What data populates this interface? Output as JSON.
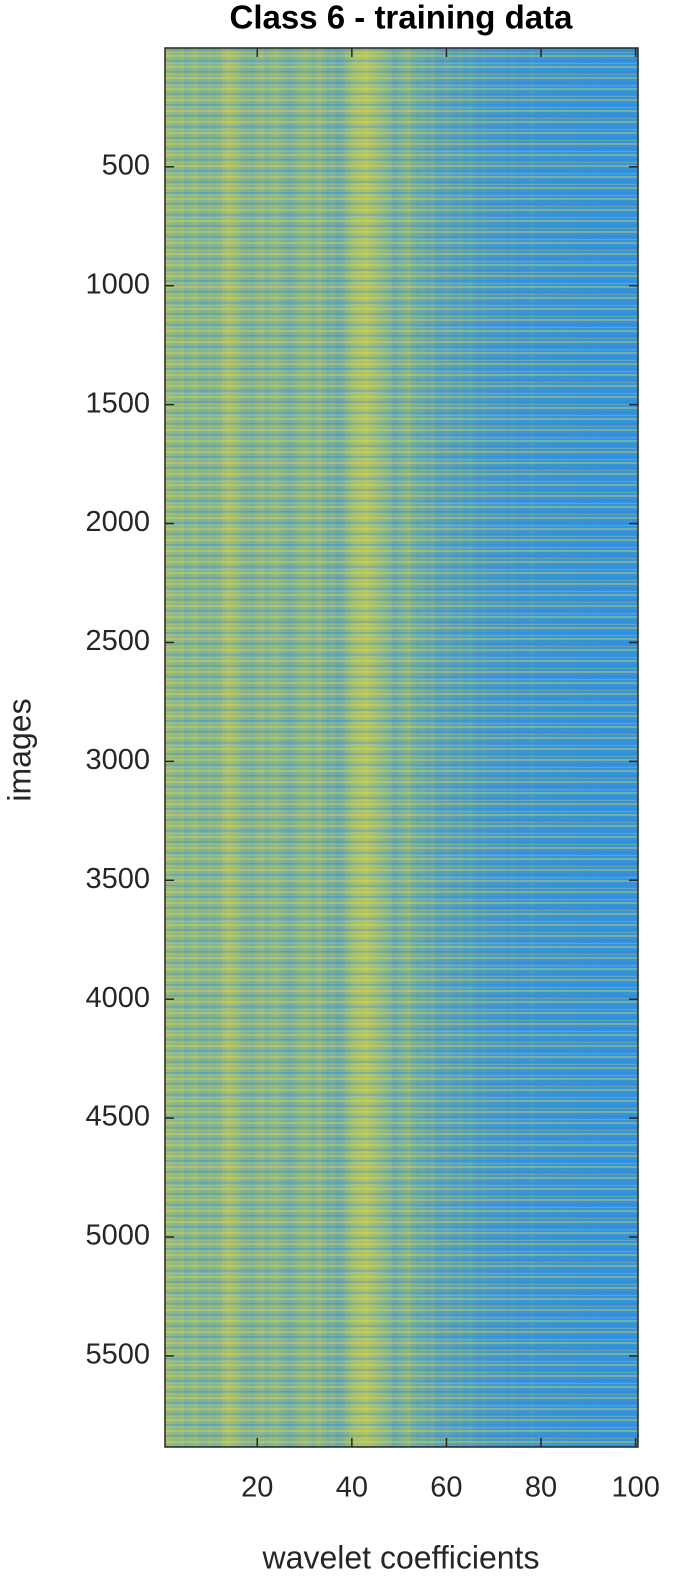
{
  "chart_data": {
    "type": "heatmap",
    "title": "Class 6 - training data",
    "x_label": "wavelet coefficients",
    "y_label": "images",
    "x": [
      1,
      2,
      3,
      4,
      5,
      6,
      7,
      8,
      9,
      10,
      11,
      12,
      13,
      14,
      15,
      16,
      17,
      18,
      19,
      20,
      21,
      22,
      23,
      24,
      25,
      26,
      27,
      28,
      29,
      30,
      31,
      32,
      33,
      34,
      35,
      36,
      37,
      38,
      39,
      40,
      41,
      42,
      43,
      44,
      45,
      46,
      47,
      48,
      49,
      50,
      51,
      52,
      53,
      54,
      55,
      56,
      57,
      58,
      59,
      60,
      61,
      62,
      63,
      64,
      65,
      66,
      67,
      68,
      69,
      70,
      71,
      72,
      73,
      74,
      75,
      76,
      77,
      78,
      79,
      80,
      81,
      82,
      83,
      84,
      85,
      86,
      87,
      88,
      89,
      90,
      91,
      92,
      93,
      94,
      95,
      96,
      97,
      98,
      99,
      100
    ],
    "values": [
      0.55,
      0.5,
      0.45,
      0.5,
      0.4,
      0.45,
      0.5,
      0.42,
      0.4,
      0.45,
      0.4,
      0.45,
      0.55,
      0.6,
      0.55,
      0.5,
      0.42,
      0.4,
      0.38,
      0.45,
      0.48,
      0.4,
      0.45,
      0.5,
      0.42,
      0.38,
      0.35,
      0.4,
      0.45,
      0.5,
      0.45,
      0.4,
      0.5,
      0.42,
      0.35,
      0.38,
      0.3,
      0.35,
      0.45,
      0.55,
      0.6,
      0.62,
      0.65,
      0.6,
      0.55,
      0.5,
      0.45,
      0.4,
      0.3,
      0.35,
      0.4,
      0.45,
      0.35,
      0.3,
      0.32,
      0.25,
      0.3,
      0.22,
      0.2,
      0.25,
      0.2,
      0.18,
      0.22,
      0.15,
      0.2,
      0.15,
      0.12,
      0.15,
      0.1,
      0.12,
      0.1,
      0.12,
      0.08,
      0.1,
      0.08,
      0.06,
      0.08,
      0.1,
      0.06,
      0.05,
      0.06,
      0.05,
      0.04,
      0.06,
      0.05,
      0.04,
      0.05,
      0.03,
      0.04,
      0.03,
      0.03,
      0.04,
      0.02,
      0.03,
      0.02,
      0.03,
      0.02,
      0.02,
      0.03,
      0.02
    ],
    "clim": [
      0,
      1
    ],
    "low_color": "#2f91e1",
    "high_color": "#f3e02b",
    "xlim": [
      0.5,
      100.5
    ],
    "xticks": [
      20,
      40,
      60,
      80,
      100
    ],
    "ylim": [
      0.5,
      5883
    ],
    "yticks": [
      500,
      1000,
      1500,
      2000,
      2500,
      3000,
      3500,
      4000,
      4500,
      5000,
      5500
    ],
    "y_reversed": true
  }
}
